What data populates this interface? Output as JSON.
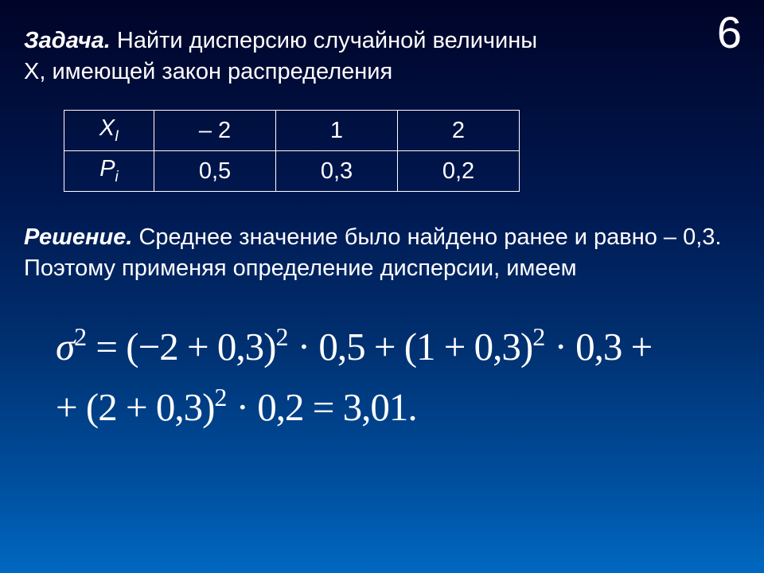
{
  "slide_number": "6",
  "problem": {
    "label": "Задача.",
    "text_line1": "  Найти дисперсию случайной величины",
    "text_line2": "Х, имеющей закон распределения"
  },
  "table": {
    "row_x_label_main": "X",
    "row_x_label_sub": "I",
    "row_x_vals": [
      "– 2",
      "1",
      "2"
    ],
    "row_p_label_main": "P",
    "row_p_label_sub": "i",
    "row_p_vals": [
      "0,5",
      "0,3",
      "0,2"
    ]
  },
  "solution": {
    "label": "Решение.",
    "text": "  Среднее значение было найдено ранее и равно  – 0,3. Поэтому применяя  определение дисперсии, имеем"
  },
  "formula": {
    "line1": "σ² = (−2 + 0,3)² · 0,5 + (1 + 0,3)² · 0,3 +",
    "line2": "+ (2 + 0,3)² · 0,2 = 3,01."
  }
}
